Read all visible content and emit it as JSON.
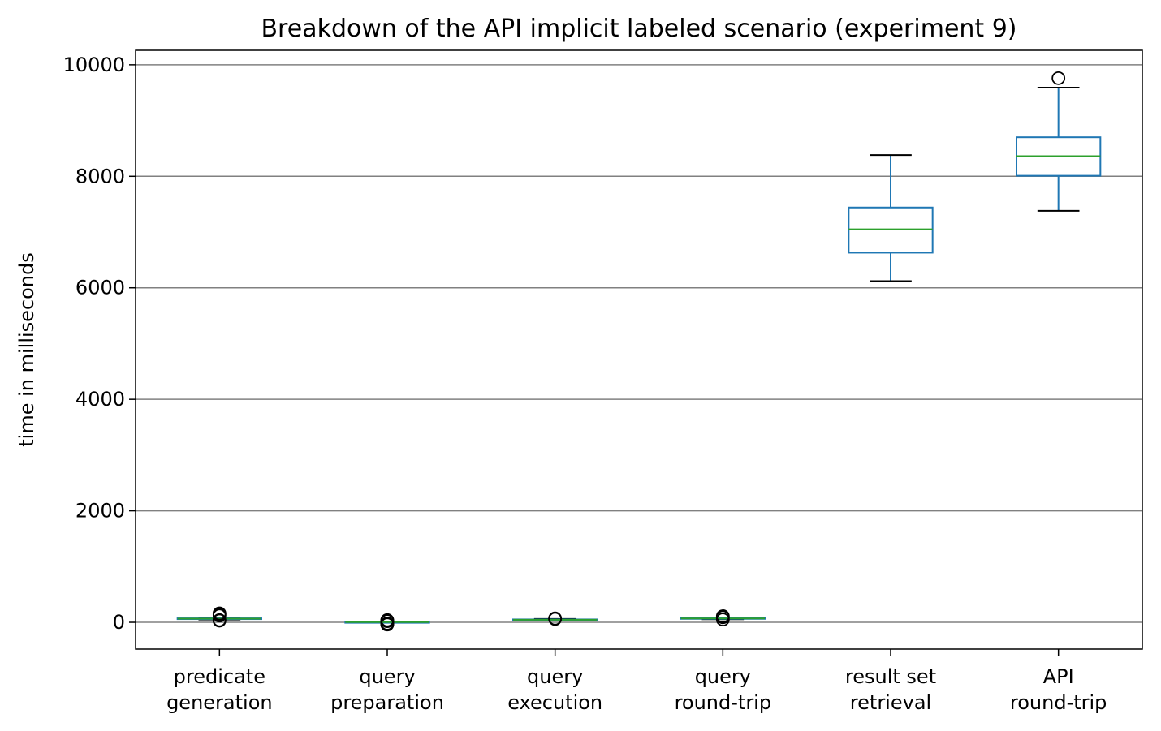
{
  "chart_data": {
    "type": "box",
    "title": "Breakdown of the API implicit labeled scenario (experiment 9)",
    "xlabel": "",
    "ylabel": "time in milliseconds",
    "ylim": [
      -480,
      10260
    ],
    "yticks": [
      0,
      2000,
      4000,
      6000,
      8000,
      10000
    ],
    "grid": "y",
    "categories": [
      [
        "predicate",
        "generation"
      ],
      [
        "query",
        "preparation"
      ],
      [
        "query",
        "execution"
      ],
      [
        "query",
        "round-trip"
      ],
      [
        "result set",
        "retrieval"
      ],
      [
        "API",
        "round-trip"
      ]
    ],
    "boxes": [
      {
        "whisker_low": 50,
        "q1": 58,
        "median": 65,
        "q3": 72,
        "whisker_high": 80,
        "outliers": [
          30,
          40,
          120,
          140,
          160
        ]
      },
      {
        "whisker_low": 0,
        "q1": 2,
        "median": 4,
        "q3": 6,
        "whisker_high": 10,
        "outliers": [
          -40,
          -30,
          -20,
          20,
          30,
          40
        ]
      },
      {
        "whisker_low": 30,
        "q1": 38,
        "median": 45,
        "q3": 52,
        "whisker_high": 60,
        "outliers": [
          60,
          70
        ]
      },
      {
        "whisker_low": 55,
        "q1": 62,
        "median": 70,
        "q3": 78,
        "whisker_high": 85,
        "outliers": [
          50,
          90,
          110
        ]
      },
      {
        "whisker_low": 6120,
        "q1": 6630,
        "median": 7050,
        "q3": 7440,
        "whisker_high": 8380,
        "outliers": []
      },
      {
        "whisker_low": 7380,
        "q1": 8010,
        "median": 8360,
        "q3": 8700,
        "whisker_high": 9590,
        "outliers": [
          9760
        ]
      }
    ],
    "colors": {
      "box": "#1f77b4",
      "median": "#2ca02c",
      "whisker_cap": "#000000",
      "grid": "#808080"
    }
  }
}
